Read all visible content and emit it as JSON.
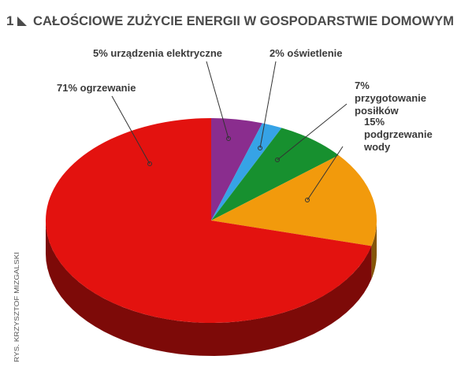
{
  "chart_data": {
    "type": "pie",
    "figure_number": "1",
    "title": "CAŁOŚCIOWE ZUŻYCIE ENERGII W GOSPODARSTWIE DOMOWYM",
    "categories": [
      "urządzenia elektryczne",
      "oświetlenie",
      "przygotowanie posiłków",
      "podgrzewanie wody",
      "ogrzewanie"
    ],
    "values": [
      5,
      2,
      7,
      15,
      71
    ],
    "value_labels": [
      "5%",
      "2%",
      "7%",
      "15%",
      "71%"
    ],
    "colors": [
      "#8a2d8e",
      "#36a3e6",
      "#17902f",
      "#f29a0c",
      "#e3120f"
    ],
    "credit": "RYS. KRZYSZTOF MIZGALSKI"
  }
}
